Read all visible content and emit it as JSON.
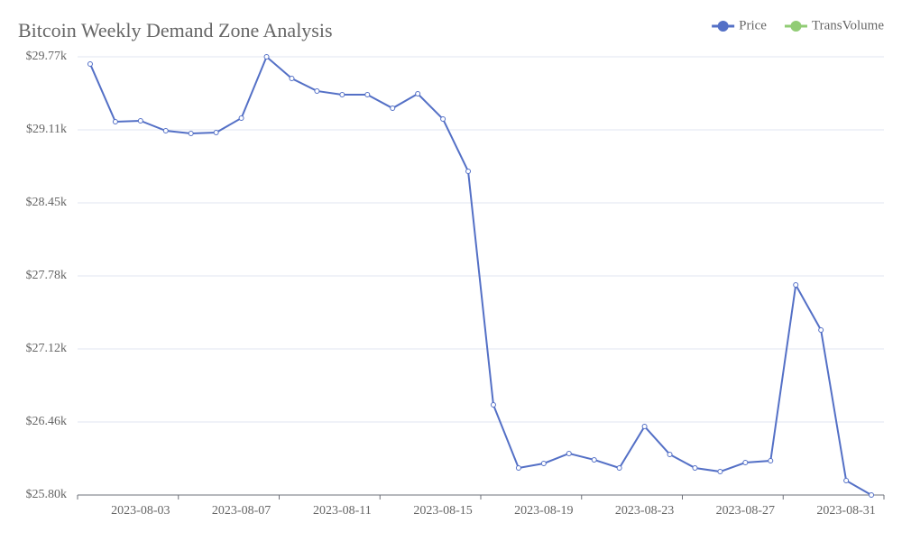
{
  "chart_data": {
    "type": "line",
    "title": "Bitcoin Weekly Demand Zone Analysis",
    "categories": [
      null,
      null,
      "2023-08-03",
      null,
      null,
      null,
      "2023-08-07",
      null,
      null,
      null,
      "2023-08-11",
      null,
      null,
      null,
      "2023-08-15",
      null,
      null,
      null,
      "2023-08-19",
      null,
      null,
      null,
      "2023-08-23",
      null,
      null,
      null,
      "2023-08-27",
      null,
      null,
      null,
      "2023-08-31",
      null
    ],
    "series": [
      {
        "name": "Price",
        "color": "#5470c6",
        "values": [
          29705,
          29182,
          29190,
          29100,
          29076,
          29084,
          29215,
          29770,
          29574,
          29460,
          29427,
          29427,
          29304,
          29435,
          29206,
          28733,
          26617,
          26045,
          26086,
          26176,
          26119,
          26045,
          26421,
          26168,
          26045,
          26012,
          26094,
          26110,
          27703,
          27295,
          25931,
          25800
        ]
      },
      {
        "name": "TransVolume",
        "color": "#91cc75",
        "values": [
          null,
          null,
          null,
          null,
          null,
          null,
          null,
          null,
          null,
          null,
          null,
          null,
          null,
          null,
          null,
          null,
          null,
          null,
          null,
          null,
          null,
          null,
          null,
          null,
          null,
          null,
          null,
          null,
          null,
          null,
          null,
          null
        ]
      }
    ],
    "ylim": [
      25800,
      29770
    ],
    "yticks": [
      {
        "value": 25800,
        "label": "$25.80k"
      },
      {
        "value": 26461.67,
        "label": "$26.46k"
      },
      {
        "value": 27123.33,
        "label": "$27.12k"
      },
      {
        "value": 27785,
        "label": "$27.78k"
      },
      {
        "value": 28446.67,
        "label": "$28.45k"
      },
      {
        "value": 29108.33,
        "label": "$29.11k"
      },
      {
        "value": 29770,
        "label": "$29.77k"
      }
    ],
    "grid": true,
    "legend": "top-right"
  }
}
